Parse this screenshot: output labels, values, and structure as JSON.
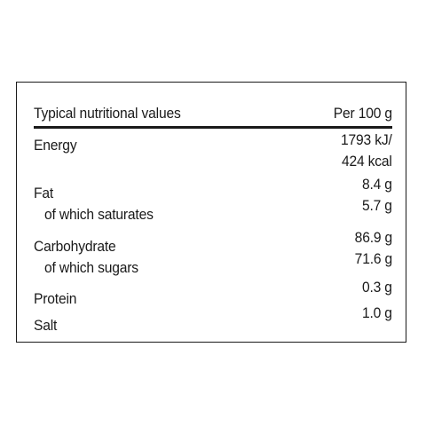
{
  "label": {
    "header": {
      "title": "Typical nutritional values",
      "per": "Per 100 g"
    },
    "rows": [
      {
        "name": "Energy",
        "value": "1793 kJ/",
        "value2": "424 kcal"
      },
      {
        "name": "Fat",
        "value": "8.4 g"
      },
      {
        "name": "of which saturates",
        "value": "5.7 g"
      },
      {
        "name": "Carbohydrate",
        "value": "86.9 g"
      },
      {
        "name": "of which sugars",
        "value": "71.6 g"
      },
      {
        "name": "Protein",
        "value": "0.3 g"
      },
      {
        "name": "Salt",
        "value": "1.0 g"
      }
    ]
  }
}
